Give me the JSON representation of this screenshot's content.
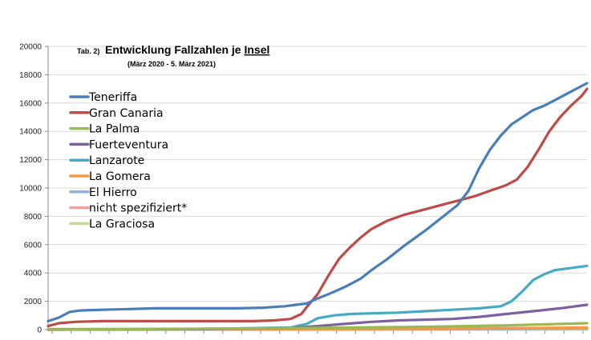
{
  "chart_data": {
    "type": "line",
    "title_prefix": "Tab. 2)",
    "title_main": "Entwicklung Fallzahlen je ",
    "title_underlined": "Insel",
    "subtitle": "(März 2020 - 5. März 2021)",
    "ylim": [
      0,
      20000
    ],
    "yticks": [
      "0",
      "2000",
      "4000",
      "6000",
      "8000",
      "10000",
      "12000",
      "14000",
      "16000",
      "18000",
      "20000"
    ],
    "ytick_values": [
      0,
      2000,
      4000,
      6000,
      8000,
      10000,
      12000,
      14000,
      16000,
      18000,
      20000
    ],
    "xlim": [
      0,
      1
    ],
    "x_tick_count": 28,
    "grid": true,
    "legend_position": "top-left",
    "series": [
      {
        "name": "Teneriffa",
        "color": "#4a7ebb",
        "points": [
          [
            0,
            600
          ],
          [
            0.02,
            850
          ],
          [
            0.04,
            1250
          ],
          [
            0.06,
            1350
          ],
          [
            0.1,
            1400
          ],
          [
            0.15,
            1450
          ],
          [
            0.2,
            1500
          ],
          [
            0.25,
            1500
          ],
          [
            0.3,
            1500
          ],
          [
            0.35,
            1500
          ],
          [
            0.4,
            1550
          ],
          [
            0.42,
            1600
          ],
          [
            0.44,
            1650
          ],
          [
            0.46,
            1750
          ],
          [
            0.48,
            1850
          ],
          [
            0.5,
            2200
          ],
          [
            0.52,
            2500
          ],
          [
            0.55,
            3000
          ],
          [
            0.58,
            3600
          ],
          [
            0.6,
            4200
          ],
          [
            0.63,
            5000
          ],
          [
            0.66,
            5900
          ],
          [
            0.7,
            7000
          ],
          [
            0.73,
            7900
          ],
          [
            0.76,
            8800
          ],
          [
            0.78,
            9800
          ],
          [
            0.8,
            11400
          ],
          [
            0.82,
            12700
          ],
          [
            0.84,
            13700
          ],
          [
            0.86,
            14500
          ],
          [
            0.88,
            15000
          ],
          [
            0.9,
            15500
          ],
          [
            0.92,
            15800
          ],
          [
            0.94,
            16200
          ],
          [
            0.96,
            16600
          ],
          [
            0.98,
            17000
          ],
          [
            1.0,
            17400
          ]
        ]
      },
      {
        "name": "Gran Canaria",
        "color": "#be4b48",
        "points": [
          [
            0,
            250
          ],
          [
            0.02,
            450
          ],
          [
            0.05,
            550
          ],
          [
            0.1,
            600
          ],
          [
            0.2,
            600
          ],
          [
            0.3,
            600
          ],
          [
            0.38,
            600
          ],
          [
            0.42,
            650
          ],
          [
            0.45,
            750
          ],
          [
            0.47,
            1100
          ],
          [
            0.48,
            1600
          ],
          [
            0.5,
            2500
          ],
          [
            0.52,
            3800
          ],
          [
            0.54,
            5000
          ],
          [
            0.56,
            5800
          ],
          [
            0.58,
            6500
          ],
          [
            0.6,
            7100
          ],
          [
            0.63,
            7700
          ],
          [
            0.66,
            8100
          ],
          [
            0.7,
            8500
          ],
          [
            0.73,
            8800
          ],
          [
            0.76,
            9100
          ],
          [
            0.79,
            9400
          ],
          [
            0.82,
            9800
          ],
          [
            0.85,
            10200
          ],
          [
            0.87,
            10600
          ],
          [
            0.89,
            11500
          ],
          [
            0.91,
            12700
          ],
          [
            0.93,
            14000
          ],
          [
            0.95,
            15000
          ],
          [
            0.97,
            15800
          ],
          [
            0.99,
            16500
          ],
          [
            1.0,
            17000
          ]
        ]
      },
      {
        "name": "La Palma",
        "color": "#98b954",
        "points": [
          [
            0,
            0
          ],
          [
            0.3,
            60
          ],
          [
            0.5,
            120
          ],
          [
            0.7,
            200
          ],
          [
            0.85,
            300
          ],
          [
            1.0,
            450
          ]
        ]
      },
      {
        "name": "Fuerteventura",
        "color": "#7d60a0",
        "points": [
          [
            0,
            0
          ],
          [
            0.3,
            40
          ],
          [
            0.45,
            100
          ],
          [
            0.5,
            250
          ],
          [
            0.55,
            400
          ],
          [
            0.6,
            550
          ],
          [
            0.65,
            650
          ],
          [
            0.7,
            700
          ],
          [
            0.75,
            750
          ],
          [
            0.8,
            900
          ],
          [
            0.85,
            1100
          ],
          [
            0.9,
            1300
          ],
          [
            0.95,
            1500
          ],
          [
            1.0,
            1750
          ]
        ]
      },
      {
        "name": "Lanzarote",
        "color": "#46aac5",
        "points": [
          [
            0,
            0
          ],
          [
            0.3,
            50
          ],
          [
            0.45,
            150
          ],
          [
            0.48,
            400
          ],
          [
            0.5,
            800
          ],
          [
            0.53,
            1000
          ],
          [
            0.56,
            1100
          ],
          [
            0.6,
            1150
          ],
          [
            0.65,
            1200
          ],
          [
            0.7,
            1300
          ],
          [
            0.75,
            1400
          ],
          [
            0.8,
            1500
          ],
          [
            0.84,
            1650
          ],
          [
            0.86,
            2000
          ],
          [
            0.88,
            2700
          ],
          [
            0.9,
            3500
          ],
          [
            0.92,
            3900
          ],
          [
            0.94,
            4200
          ],
          [
            0.96,
            4300
          ],
          [
            0.98,
            4400
          ],
          [
            1.0,
            4500
          ]
        ]
      },
      {
        "name": "La Gomera",
        "color": "#f79646",
        "points": [
          [
            0,
            0
          ],
          [
            0.5,
            30
          ],
          [
            0.7,
            50
          ],
          [
            0.85,
            90
          ],
          [
            1.0,
            150
          ]
        ]
      },
      {
        "name": "El Hierro",
        "color": "#93aed4",
        "points": [
          [
            0,
            0
          ],
          [
            0.5,
            20
          ],
          [
            0.8,
            40
          ],
          [
            1.0,
            80
          ]
        ]
      },
      {
        "name": "nicht spezifiziert*",
        "color": "#e6a3a2",
        "points": [
          [
            0,
            40
          ],
          [
            0.3,
            60
          ],
          [
            0.5,
            80
          ],
          [
            0.75,
            100
          ],
          [
            1.0,
            120
          ]
        ]
      },
      {
        "name": "La Graciosa",
        "color": "#c4d79b",
        "points": [
          [
            0,
            0
          ],
          [
            0.8,
            5
          ],
          [
            1.0,
            10
          ]
        ]
      }
    ]
  }
}
